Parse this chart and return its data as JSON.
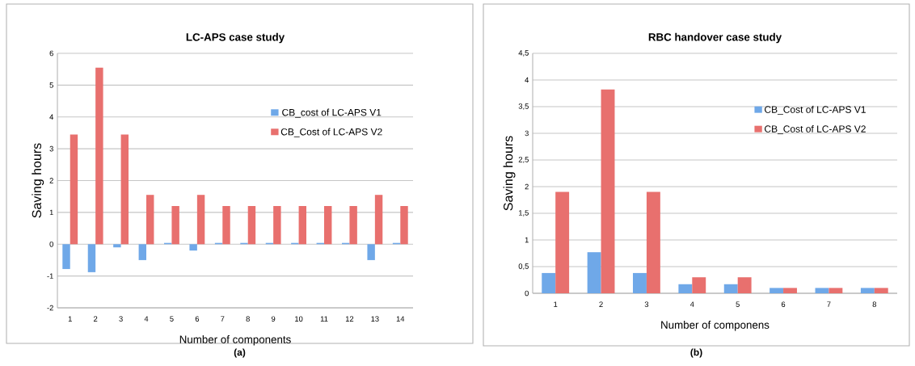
{
  "chart_data": [
    {
      "type": "bar",
      "title": "LC-APS case study",
      "xlabel": "Number of components",
      "ylabel": "Saving hours",
      "categories": [
        "1",
        "2",
        "3",
        "4",
        "5",
        "6",
        "7",
        "8",
        "9",
        "10",
        "11",
        "12",
        "13",
        "14"
      ],
      "series": [
        {
          "name": "CB_cost of LC-APS V1",
          "color": "#6fa8e8",
          "values": [
            -0.78,
            -0.88,
            -0.1,
            -0.5,
            0.04,
            -0.2,
            0.04,
            0.04,
            0.04,
            0.04,
            0.04,
            0.04,
            -0.5,
            0.04
          ]
        },
        {
          "name": "CB_Cost of LC-APS V2",
          "color": "#e8706e",
          "values": [
            3.45,
            5.55,
            3.45,
            1.55,
            1.2,
            1.55,
            1.2,
            1.2,
            1.2,
            1.2,
            1.2,
            1.2,
            1.55,
            1.2
          ]
        }
      ],
      "ylim": [
        -2,
        6
      ],
      "yticks": [
        -2,
        -1,
        0,
        1,
        2,
        3,
        4,
        5,
        6
      ],
      "grid": "y",
      "legend": "top right",
      "annotations": [
        "(a)"
      ]
    },
    {
      "type": "bar",
      "title": "RBC handover case study",
      "xlabel": "Number of componens",
      "ylabel": "Saving hours",
      "categories": [
        "1",
        "2",
        "3",
        "4",
        "5",
        "6",
        "7",
        "8"
      ],
      "series": [
        {
          "name": "CB_Cost of LC-APS V1",
          "color": "#6fa8e8",
          "values": [
            0.38,
            0.77,
            0.38,
            0.17,
            0.17,
            0.1,
            0.1,
            0.1
          ]
        },
        {
          "name": "CB_Cost of LC-APS V2",
          "color": "#e8706e",
          "values": [
            1.9,
            3.82,
            1.9,
            0.3,
            0.3,
            0.1,
            0.1,
            0.1
          ]
        }
      ],
      "ylim": [
        0,
        4.5
      ],
      "yticks": [
        0,
        {
          "value": 0.5,
          "label": "0,5"
        },
        1,
        {
          "value": 1.5,
          "label": "1,5"
        },
        2,
        {
          "value": 2.5,
          "label": "2,5"
        },
        3,
        {
          "value": 3.5,
          "label": "3,5"
        },
        4,
        {
          "value": 4.5,
          "label": "4,5"
        }
      ],
      "grid": "y",
      "legend": "top right",
      "annotations": [
        "(b)"
      ]
    }
  ]
}
